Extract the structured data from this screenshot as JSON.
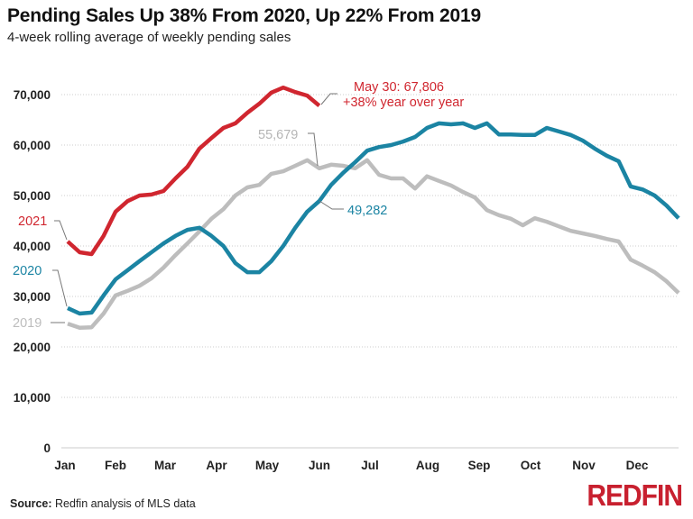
{
  "chart_data": {
    "type": "line",
    "title": "Pending Sales Up 38% From 2020, Up 22% From 2019",
    "subtitle": "4-week rolling average of weekly pending sales",
    "xlabel": "",
    "ylabel": "",
    "ylim": [
      0,
      72000
    ],
    "yticks": [
      "0",
      "10,000",
      "20,000",
      "30,000",
      "40,000",
      "50,000",
      "60,000",
      "70,000"
    ],
    "ytick_values": [
      0,
      10000,
      20000,
      30000,
      40000,
      50000,
      60000,
      70000
    ],
    "xticks": [
      "Jan",
      "Feb",
      "Mar",
      "Apr",
      "May",
      "Jun",
      "Jul",
      "Aug",
      "Sep",
      "Oct",
      "Nov",
      "Dec"
    ],
    "grid": "horizontal dotted",
    "legend": "direct labels at left",
    "series": [
      {
        "name": "2019",
        "color": "#bdbdbd",
        "values": [
          24600,
          23800,
          23900,
          26600,
          30200,
          31100,
          32100,
          33600,
          35700,
          38200,
          40500,
          42900,
          45400,
          47300,
          50000,
          51600,
          52100,
          54300,
          54800,
          55900,
          57000,
          55400,
          56100,
          55900,
          55400,
          57000,
          54100,
          53400,
          53400,
          51400,
          53800,
          52900,
          52000,
          50700,
          49600,
          47100,
          46100,
          45400,
          44100,
          45500,
          44800,
          43900,
          43000,
          42500,
          42000,
          41400,
          40900,
          37300,
          36100,
          34800,
          33000,
          30700
        ]
      },
      {
        "name": "2020",
        "color": "#1b84a3",
        "values": [
          27700,
          26600,
          26800,
          30200,
          33400,
          35200,
          37000,
          38750,
          40500,
          42000,
          43200,
          43600,
          42000,
          40000,
          36600,
          34800,
          34800,
          37000,
          40000,
          43600,
          46800,
          48900,
          52100,
          54500,
          56600,
          58900,
          59600,
          60000,
          60700,
          61600,
          63400,
          64300,
          64100,
          64300,
          63400,
          64300,
          62100,
          62100,
          62000,
          62000,
          63400,
          62700,
          62000,
          60900,
          59300,
          57900,
          56800,
          51800,
          51200,
          50000,
          48000,
          45500
        ]
      },
      {
        "name": "2021",
        "color": "#d0262f",
        "values": [
          40900,
          38750,
          38400,
          42000,
          46800,
          48900,
          50000,
          50200,
          50900,
          53400,
          55700,
          59300,
          61400,
          63400,
          64300,
          66400,
          68200,
          70400,
          71400,
          70500,
          69800,
          67806
        ]
      }
    ],
    "annotations": {
      "label_2021": "2021",
      "label_2020": "2020",
      "label_2019": "2019",
      "gray_value": "55,679",
      "blue_value": "49,282",
      "red_line1": "May 30: 67,806",
      "red_line2": "+38% year over year"
    }
  },
  "footer": {
    "source_label": "Source:",
    "source_text": "Redfin analysis of MLS data",
    "logo": "REDFIN"
  }
}
